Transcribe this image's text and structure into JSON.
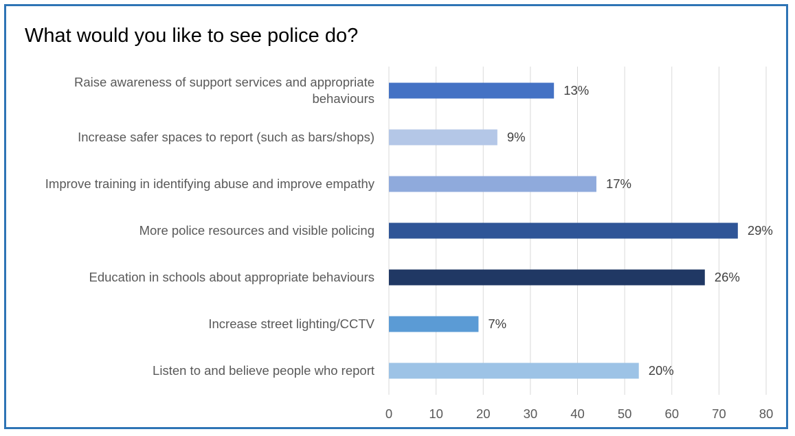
{
  "chart_data": {
    "type": "bar",
    "orientation": "horizontal",
    "title": "What would you like to see police do?",
    "categories": [
      [
        "Raise awareness of support services and appropriate",
        "behaviours"
      ],
      [
        "Increase safer spaces to report (such as bars/shops)"
      ],
      [
        "Improve training in identifying abuse and improve empathy"
      ],
      [
        "More police resources and visible policing"
      ],
      [
        "Education in schools about appropriate behaviours"
      ],
      [
        "Increase street lighting/CCTV"
      ],
      [
        "Listen to and believe people who report"
      ]
    ],
    "values": [
      35,
      23,
      44,
      74,
      67,
      19,
      53
    ],
    "data_labels": [
      "13%",
      "9%",
      "17%",
      "29%",
      "26%",
      "7%",
      "20%"
    ],
    "colors": [
      "#4472c4",
      "#b4c7e7",
      "#8faadc",
      "#2f5597",
      "#203864",
      "#5b9bd5",
      "#9dc3e6"
    ],
    "xlim": [
      0,
      80
    ],
    "xticks": [
      0,
      10,
      20,
      30,
      40,
      50,
      60,
      70,
      80
    ],
    "grid": true,
    "legend": "none"
  }
}
